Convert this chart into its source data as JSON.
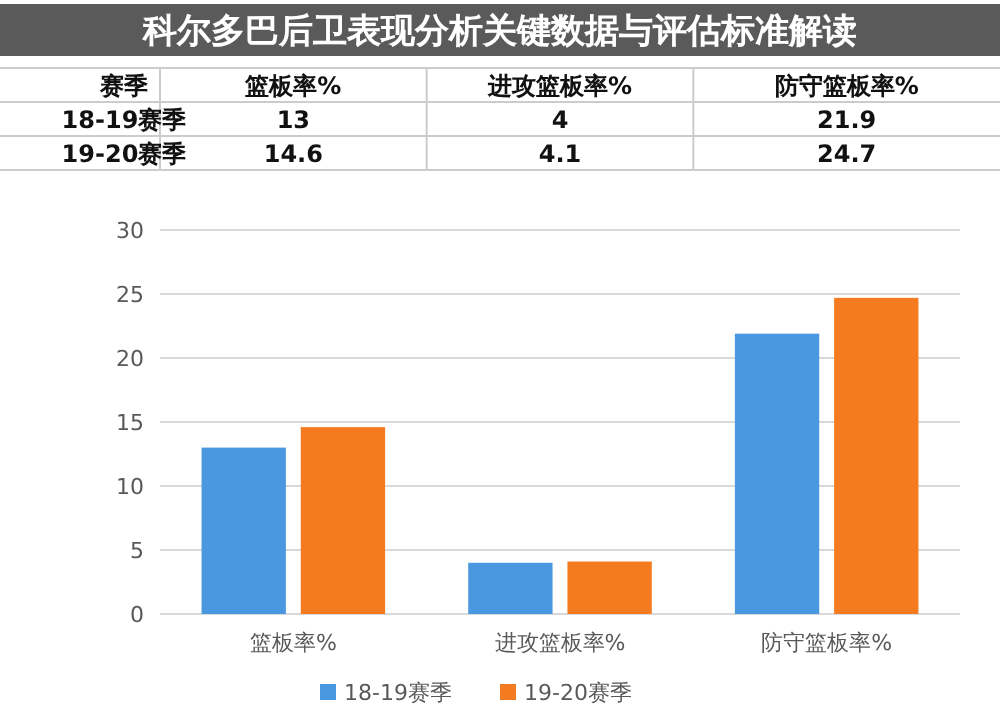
{
  "chart_data": {
    "type": "bar",
    "title": "科尔多巴后卫表现分析关键数据与评估标准解读",
    "legend_title": "赛季",
    "categories": [
      "篮板率%",
      "进攻篮板率%",
      "防守篮板率%"
    ],
    "series": [
      {
        "name": "18-19赛季",
        "color": "#4a98e0",
        "values": [
          13,
          4,
          21.9
        ]
      },
      {
        "name": "19-20赛季",
        "color": "#f47b20",
        "values": [
          14.6,
          4.1,
          24.7
        ]
      }
    ],
    "ylim": [
      0,
      30
    ],
    "yticks": [
      0,
      5,
      10,
      15,
      20,
      25,
      30
    ],
    "grid": "y",
    "legend": "bottom",
    "data_labels": true
  }
}
